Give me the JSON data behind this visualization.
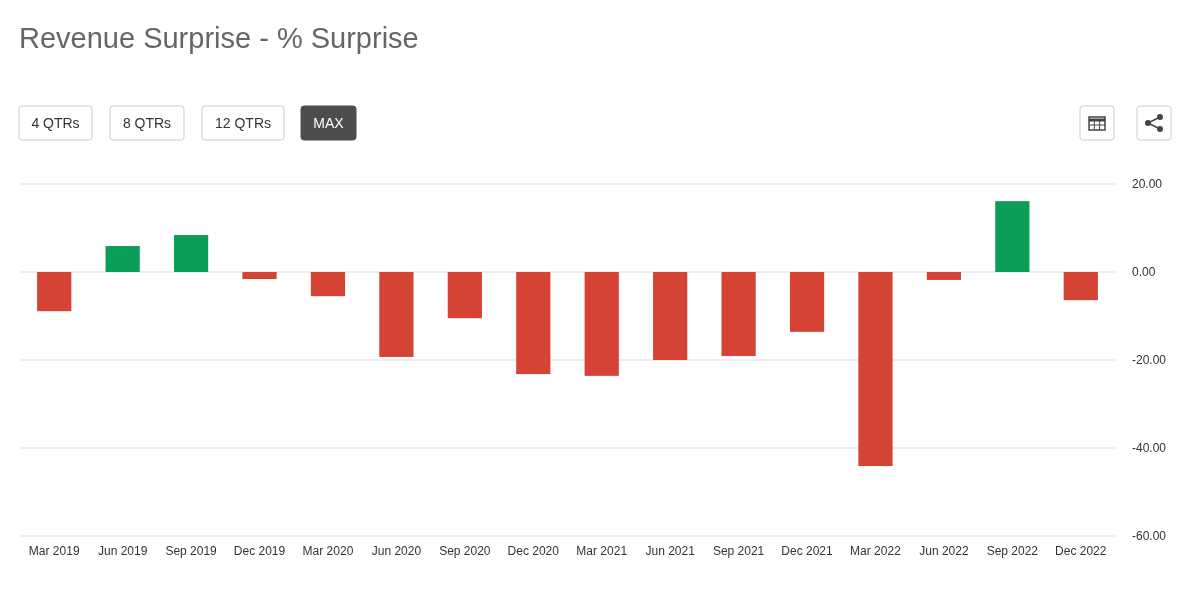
{
  "chart_data": {
    "type": "bar",
    "title": "Revenue Surprise - % Surprise",
    "categories": [
      "Mar 2019",
      "Jun 2019",
      "Sep 2019",
      "Dec 2019",
      "Mar 2020",
      "Jun 2020",
      "Sep 2020",
      "Dec 2020",
      "Mar 2021",
      "Jun 2021",
      "Sep 2021",
      "Dec 2021",
      "Mar 2022",
      "Jun 2022",
      "Sep 2022",
      "Dec 2022"
    ],
    "values": [
      -8.9,
      5.9,
      8.4,
      -1.6,
      -5.5,
      -19.3,
      -10.5,
      -23.2,
      -23.6,
      -20.0,
      -19.1,
      -13.6,
      -44.1,
      -1.8,
      16.1,
      -6.4
    ],
    "colors": [
      "#d44333",
      "#0c9d58",
      "#0c9d58",
      "#d44333",
      "#d44333",
      "#d44333",
      "#d44333",
      "#d44333",
      "#d44333",
      "#d44333",
      "#d44333",
      "#d44333",
      "#d44333",
      "#d44333",
      "#0c9d58",
      "#d44333"
    ],
    "ylim": [
      -60,
      20
    ],
    "yticks": [
      {
        "value": -60,
        "label": "-60.00"
      },
      {
        "value": -40,
        "label": "-40.00"
      },
      {
        "value": -20,
        "label": "-20.00"
      },
      {
        "value": 0,
        "label": "0.00"
      },
      {
        "value": 20,
        "label": "20.00"
      }
    ],
    "grid": "y",
    "annotations": [
      "4 QTRs",
      "8 QTRs",
      "12 QTRs",
      "MAX"
    ]
  }
}
